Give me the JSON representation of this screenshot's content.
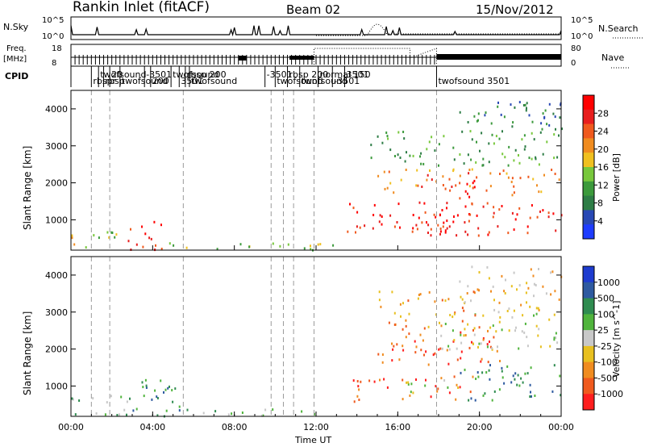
{
  "header": {
    "station": "Rankin Inlet (fitACF)",
    "beam": "Beam 02",
    "date": "15/Nov/2012"
  },
  "strips": {
    "nsky_label": "N.Sky",
    "nsky_ticks": [
      "10^5",
      "10^0"
    ],
    "nsearch_label": "N.Search",
    "nsearch_ticks": [
      "10^5",
      "10^0"
    ],
    "freq_label": "Freq.",
    "freq_unit": "[MHz]",
    "freq_ticks": [
      "18",
      "8"
    ],
    "nave_label": "Nave",
    "nave_ticks": [
      "80",
      "0"
    ],
    "cpid_label": "CPID"
  },
  "cpid_segments": [
    {
      "label": "rbspr",
      "start": 1.0
    },
    {
      "label": "twofsound",
      "start": 1.35
    },
    {
      "label": "rbsp",
      "start": 1.6
    },
    {
      "label": "20",
      "start": 1.9
    },
    {
      "label": "twofsound",
      "start": 2.4
    },
    {
      "label": "-3501",
      "start": 3.6
    },
    {
      "label": "200",
      "start": 3.9
    },
    {
      "label": "twofsound",
      "start": 4.9
    },
    {
      "label": "3501",
      "start": 5.3
    },
    {
      "label": "rbsp 200",
      "start": 5.6
    },
    {
      "label": "twofsound",
      "start": 5.8
    },
    {
      "label": "-3501",
      "start": 9.5
    },
    {
      "label": "twofsound",
      "start": 10.0
    },
    {
      "label": "rbsp 200",
      "start": 10.6
    },
    {
      "label": "twofsound",
      "start": 11.2
    },
    {
      "label": "normal 150",
      "start": 12.1
    },
    {
      "label": "-3501",
      "start": 12.8
    },
    {
      "label": "3501",
      "start": 13.4
    },
    {
      "label": "twofsound 3501",
      "start": 17.9
    }
  ],
  "power_panel": {
    "ylabel": "Slant Range [km]",
    "yticks": [
      "1000",
      "2000",
      "3000",
      "4000"
    ],
    "colorbar_label": "Power [dB]",
    "colorbar_ticks": [
      "4",
      "8",
      "12",
      "16",
      "20",
      "24",
      "28"
    ]
  },
  "velocity_panel": {
    "ylabel": "Slant Range [km]",
    "yticks": [
      "1000",
      "2000",
      "3000",
      "4000"
    ],
    "colorbar_label": "Velocity [m s^-1]",
    "colorbar_ticks": [
      "1000",
      "500",
      "100",
      "25",
      "-25",
      "-100",
      "-500",
      "-1000"
    ]
  },
  "xaxis": {
    "label": "Time UT",
    "ticks": [
      "00:00",
      "04:00",
      "08:00",
      "12:00",
      "16:00",
      "20:00",
      "00:00"
    ]
  },
  "chart_data": {
    "type": "heatmap",
    "title": "Rankin Inlet (fitACF) Beam 02 15/Nov/2012",
    "xlabel": "Time UT",
    "ylabel": "Slant Range [km]",
    "xlim_hours": [
      0,
      24
    ],
    "ylim_km": [
      180,
      4500
    ],
    "grid": false,
    "scan_boundaries_hours": [
      1.0,
      1.9,
      5.5,
      9.8,
      10.4,
      10.9,
      11.9,
      17.9
    ],
    "power_colors": [
      "#1e3cff",
      "#2848b4",
      "#2e7d46",
      "#3c9a3c",
      "#78c83c",
      "#f0c020",
      "#f08c20",
      "#f05a1e",
      "#e81e1e",
      "#ff0000"
    ],
    "velocity_colors": [
      "#1e3ccf",
      "#2e5aa0",
      "#2f8c50",
      "#50b43c",
      "#c8c8c8",
      "#e8c020",
      "#f08c20",
      "#f05a1e",
      "#ff1e1e"
    ],
    "power_regions": [
      {
        "t0": 0.0,
        "t1": 1.0,
        "r0": 200,
        "r1": 700,
        "level": 5
      },
      {
        "t0": 1.0,
        "t1": 2.5,
        "r0": 200,
        "r1": 800,
        "level": 4
      },
      {
        "t0": 2.5,
        "t1": 4.5,
        "r0": 200,
        "r1": 1000,
        "level": 8
      },
      {
        "t0": 3.2,
        "t1": 4.2,
        "r0": 200,
        "r1": 700,
        "level": 9
      },
      {
        "t0": 4.5,
        "t1": 6.0,
        "r0": 200,
        "r1": 500,
        "level": 4
      },
      {
        "t0": 6.0,
        "t1": 13.0,
        "r0": 200,
        "r1": 400,
        "level": 4
      },
      {
        "t0": 13.5,
        "t1": 24.0,
        "r0": 600,
        "r1": 1500,
        "level": 8
      },
      {
        "t0": 15.0,
        "t1": 20.0,
        "r0": 700,
        "r1": 1200,
        "level": 9
      },
      {
        "t0": 15.0,
        "t1": 24.0,
        "r0": 1700,
        "r1": 2400,
        "level": 6
      },
      {
        "t0": 17.0,
        "t1": 20.0,
        "r0": 1600,
        "r1": 2300,
        "level": 8
      },
      {
        "t0": 14.5,
        "t1": 24.0,
        "r0": 2500,
        "r1": 3500,
        "level": 3
      },
      {
        "t0": 19.0,
        "t1": 24.0,
        "r0": 3500,
        "r1": 4300,
        "level": 2
      }
    ],
    "velocity_regions": [
      {
        "t0": 0.0,
        "t1": 3.0,
        "r0": 200,
        "r1": 800,
        "level": 3
      },
      {
        "t0": 3.0,
        "t1": 5.5,
        "r0": 200,
        "r1": 1200,
        "level": 2
      },
      {
        "t0": 5.5,
        "t1": 13.0,
        "r0": 200,
        "r1": 400,
        "level": 3
      },
      {
        "t0": 13.5,
        "t1": 20.0,
        "r0": 600,
        "r1": 1300,
        "level": 7
      },
      {
        "t0": 16.0,
        "t1": 19.0,
        "r0": 800,
        "r1": 1200,
        "level": 4
      },
      {
        "t0": 19.0,
        "t1": 24.0,
        "r0": 600,
        "r1": 1600,
        "level": 2
      },
      {
        "t0": 15.0,
        "t1": 21.0,
        "r0": 1600,
        "r1": 2600,
        "level": 7
      },
      {
        "t0": 18.0,
        "t1": 24.0,
        "r0": 2000,
        "r1": 3000,
        "level": 4
      },
      {
        "t0": 15.0,
        "t1": 20.0,
        "r0": 2600,
        "r1": 3600,
        "level": 6
      },
      {
        "t0": 19.0,
        "t1": 24.0,
        "r0": 3000,
        "r1": 4300,
        "level": 5
      }
    ]
  }
}
